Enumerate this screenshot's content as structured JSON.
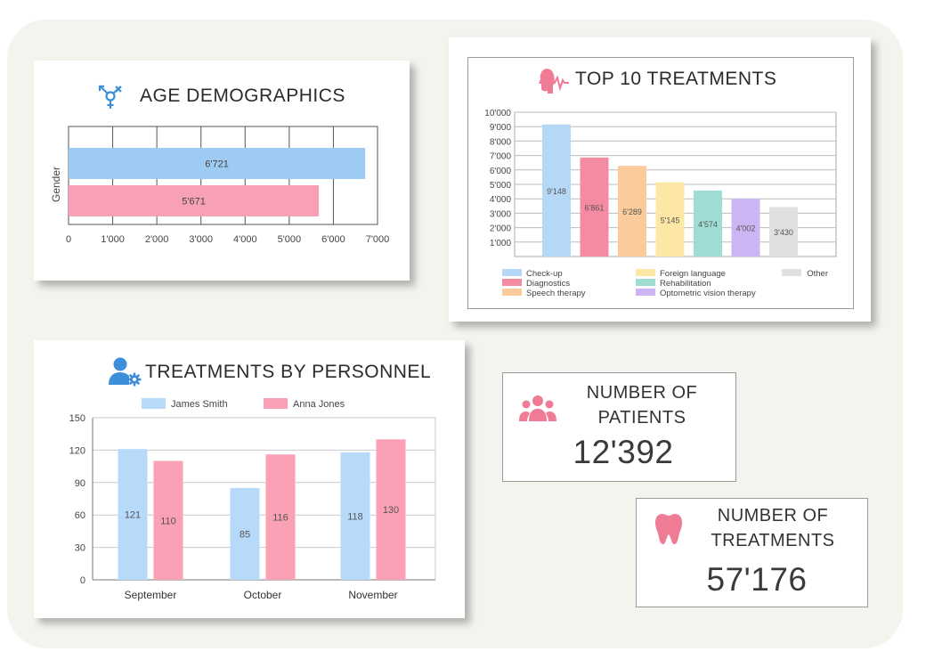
{
  "colors": {
    "blue": "#9ecbf3",
    "pink": "#f8a0b6",
    "icon_blue": "#3d8fd9",
    "icon_pink": "#f07b95"
  },
  "age_demographics": {
    "title": "AGE DEMOGRAPHICS",
    "icon": "gender-icon"
  },
  "top_treatments": {
    "title": "TOP 10 TREATMENTS",
    "icon": "face-heartbeat-icon"
  },
  "personnel": {
    "title": "TREATMENTS BY PERSONNEL",
    "icon": "user-gear-icon"
  },
  "patients": {
    "label_line1": "NUMBER OF",
    "label_line2": "PATIENTS",
    "value": "12'392",
    "icon": "users-group-icon"
  },
  "treatments": {
    "label_line1": "NUMBER OF",
    "label_line2": "TREATMENTS",
    "value": "57'176",
    "icon": "tooth-icon"
  },
  "chart_data": [
    {
      "type": "bar",
      "orientation": "horizontal",
      "title": "AGE DEMOGRAPHICS",
      "ylabel": "Gender",
      "values": [
        6721,
        5671
      ],
      "value_labels": [
        "6'721",
        "5'671"
      ],
      "colors": [
        "#9ecbf3",
        "#f8a0b6"
      ],
      "xlim": [
        0,
        7000
      ],
      "ticks": [
        0,
        1000,
        2000,
        3000,
        4000,
        5000,
        6000,
        7000
      ],
      "tick_labels": [
        "0",
        "1'000",
        "2'000",
        "3'000",
        "4'000",
        "5'000",
        "6'000",
        "7'000"
      ],
      "grid": true
    },
    {
      "type": "bar",
      "title": "TOP 10 TREATMENTS",
      "values": [
        9148,
        6861,
        6289,
        5145,
        4574,
        4002,
        3430
      ],
      "value_labels": [
        "9'148",
        "6'861",
        "6'289",
        "5'145",
        "4'574",
        "4'002",
        "3'430"
      ],
      "colors": [
        "#b5d8f7",
        "#f58ba3",
        "#fccb9c",
        "#fde7a4",
        "#9edcd4",
        "#cdb5f3",
        "#e0e0e0"
      ],
      "ylim": [
        0,
        10000
      ],
      "ticks": [
        1000,
        2000,
        3000,
        4000,
        5000,
        6000,
        7000,
        8000,
        9000,
        10000
      ],
      "tick_labels": [
        "1'000",
        "2'000",
        "3'000",
        "4'000",
        "5'000",
        "6'000",
        "7'000",
        "8'000",
        "9'000",
        "10'000"
      ],
      "legend": [
        {
          "name": "Check-up",
          "color": "#b5d8f7"
        },
        {
          "name": "Diagnostics",
          "color": "#f58ba3"
        },
        {
          "name": "Speech therapy",
          "color": "#fccb9c"
        },
        {
          "name": "Foreign language",
          "color": "#fde7a4"
        },
        {
          "name": "Rehabilitation",
          "color": "#9edcd4"
        },
        {
          "name": "Optometric vision therapy",
          "color": "#cdb5f3"
        },
        {
          "name": "Other",
          "color": "#e0e0e0"
        }
      ],
      "legend_position": "bottom",
      "grid": true
    },
    {
      "type": "bar",
      "title": "TREATMENTS BY PERSONNEL",
      "categories": [
        "September",
        "October",
        "November"
      ],
      "series": [
        {
          "name": "James Smith",
          "color": "#b7d9fa",
          "values": [
            121,
            85,
            118
          ],
          "value_labels": [
            "121",
            "85",
            "118"
          ]
        },
        {
          "name": "Anna Jones",
          "color": "#fba1b6",
          "values": [
            110,
            116,
            130
          ],
          "value_labels": [
            "110",
            "116",
            "130"
          ]
        }
      ],
      "ylim": [
        0,
        150
      ],
      "ticks": [
        0,
        30,
        60,
        90,
        120,
        150
      ],
      "tick_labels": [
        "0",
        "30",
        "60",
        "90",
        "120",
        "150"
      ],
      "legend_position": "top",
      "grid": true
    }
  ]
}
